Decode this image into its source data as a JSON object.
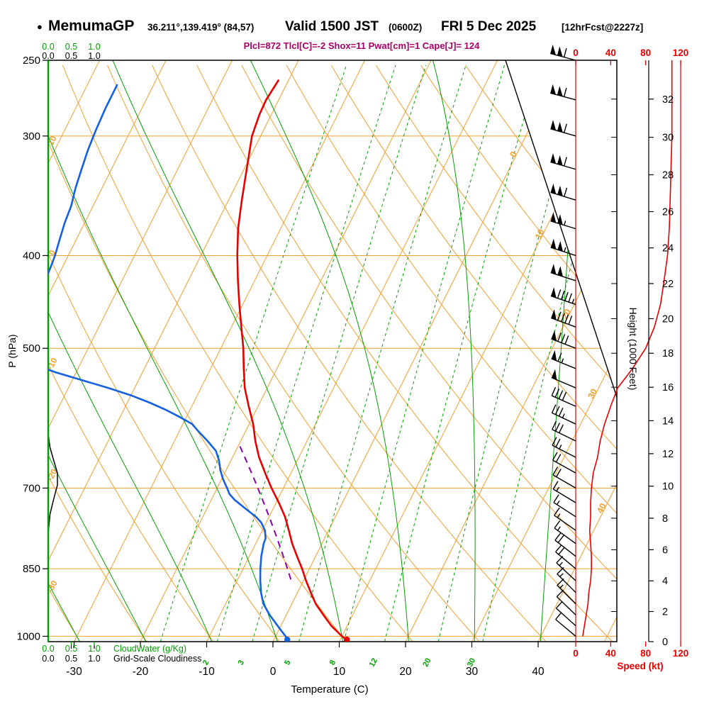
{
  "header": {
    "bullet": "●",
    "station": "MemumaGP",
    "coords": "36.211°,139.419° (84,57)",
    "valid": "Valid 1500 JST",
    "valid_z": "(0600Z)",
    "date": "FRI 5 Dec 2025",
    "fcst_tag": "[12hrFcst@2227z]",
    "indices": "Plcl=872 Tlcl[C]=-2 Shox=11 Pwat[cm]=1 Cape[J]= 124",
    "indices_color": "#aa0066"
  },
  "chart_data": {
    "type": "skewt",
    "colors": {
      "grid": "#f0a030",
      "green": "#00a000",
      "temp": "#e60000",
      "dew": "#1560e0",
      "parcel": "#8800aa",
      "speed": "#e60000",
      "cloudiness": "#000000",
      "axis": "#000000"
    },
    "pressure_axis": {
      "label": "P (hPa)",
      "ticks": [
        250,
        300,
        400,
        500,
        700,
        850,
        1000
      ],
      "bottom_hpa": 1013,
      "top_hpa": 250
    },
    "temperature_axis": {
      "label": "Temperature (C)",
      "ticks": [
        -30,
        -20,
        -10,
        0,
        10,
        20,
        30,
        40
      ]
    },
    "height_axis": {
      "label": "Height (1000 Feet)",
      "ticks_kft": [
        0,
        2,
        4,
        6,
        8,
        10,
        12,
        14,
        16,
        18,
        20,
        22,
        24,
        26,
        28,
        30,
        32
      ]
    },
    "speed_axis": {
      "label": "Speed (kt)",
      "ticks": [
        0,
        40,
        80,
        120
      ],
      "max": 120
    },
    "cloud_scale": {
      "tick_labels": [
        "0.0",
        "0.5",
        "1.0"
      ],
      "cloudwater_label": "CloudWater (g/Kg)",
      "cloudiness_label": "Grid-Scale Cloudiness"
    },
    "grid": {
      "isotherm_step": 10,
      "isotherm_labels": [
        0,
        10,
        20,
        30,
        40
      ],
      "dry_adiabat_labels": [
        -30,
        -20,
        -10,
        0,
        10
      ],
      "mixing_ratio_values": [
        1,
        2,
        3,
        5,
        8,
        12,
        20,
        30
      ],
      "mixing_ratio_labeled": [
        2,
        3,
        5,
        8,
        12,
        20,
        30
      ]
    },
    "sounding": {
      "surface": {
        "pressure": 1008,
        "temperature": 11,
        "dewpoint": 2
      },
      "parcel": {
        "lcl_pressure": 872,
        "lcl_temperature": -2,
        "top_pressure": 632
      },
      "temperature": [
        [
          1008,
          11
        ],
        [
          1000,
          10
        ],
        [
          975,
          7.6
        ],
        [
          950,
          5.6
        ],
        [
          925,
          3.6
        ],
        [
          900,
          2
        ],
        [
          875,
          0.4
        ],
        [
          850,
          -1.1
        ],
        [
          825,
          -2.8
        ],
        [
          800,
          -4.5
        ],
        [
          775,
          -6
        ],
        [
          750,
          -7.6
        ],
        [
          725,
          -9.6
        ],
        [
          700,
          -11.8
        ],
        [
          675,
          -13.9
        ],
        [
          650,
          -16
        ],
        [
          625,
          -17.8
        ],
        [
          600,
          -19.4
        ],
        [
          575,
          -21.4
        ],
        [
          550,
          -23.4
        ],
        [
          525,
          -25
        ],
        [
          500,
          -26.6
        ],
        [
          475,
          -28.5
        ],
        [
          450,
          -30.5
        ],
        [
          425,
          -32.5
        ],
        [
          400,
          -34.5
        ],
        [
          375,
          -36.4
        ],
        [
          350,
          -38
        ],
        [
          325,
          -39.6
        ],
        [
          300,
          -41.3
        ],
        [
          285,
          -41.8
        ],
        [
          275,
          -41.9
        ],
        [
          262,
          -41.5
        ]
      ],
      "dewpoint": [
        [
          1008,
          2
        ],
        [
          1000,
          1.5
        ],
        [
          975,
          -0.5
        ],
        [
          950,
          -2.5
        ],
        [
          925,
          -4.3
        ],
        [
          900,
          -5.5
        ],
        [
          875,
          -6.5
        ],
        [
          850,
          -7.4
        ],
        [
          825,
          -8.2
        ],
        [
          800,
          -8.8
        ],
        [
          790,
          -8.9
        ],
        [
          775,
          -9.6
        ],
        [
          760,
          -10.8
        ],
        [
          750,
          -12
        ],
        [
          740,
          -13.5
        ],
        [
          730,
          -15
        ],
        [
          720,
          -16.5
        ],
        [
          710,
          -17.7
        ],
        [
          700,
          -18.5
        ],
        [
          685,
          -19.8
        ],
        [
          670,
          -20.9
        ],
        [
          655,
          -21.8
        ],
        [
          640,
          -23
        ],
        [
          625,
          -25
        ],
        [
          610,
          -27.2
        ],
        [
          600,
          -28.6
        ],
        [
          590,
          -31
        ],
        [
          580,
          -33.6
        ],
        [
          570,
          -36.6
        ],
        [
          560,
          -40
        ],
        [
          550,
          -44
        ],
        [
          540,
          -48.5
        ],
        [
          530,
          -53
        ],
        [
          520,
          -57
        ],
        [
          510,
          -60
        ],
        [
          500,
          -62
        ],
        [
          485,
          -63
        ],
        [
          470,
          -62.8
        ],
        [
          455,
          -62.4
        ],
        [
          440,
          -62
        ],
        [
          425,
          -61.6
        ],
        [
          410,
          -61.8
        ],
        [
          400,
          -62
        ],
        [
          385,
          -62.5
        ],
        [
          370,
          -63
        ],
        [
          355,
          -63.3
        ],
        [
          340,
          -64
        ],
        [
          325,
          -64.5
        ],
        [
          310,
          -65
        ],
        [
          295,
          -65.3
        ],
        [
          280,
          -65.5
        ],
        [
          265,
          -65.5
        ]
      ]
    },
    "wind_profile": [
      [
        1000,
        8,
        310
      ],
      [
        975,
        10,
        312
      ],
      [
        950,
        12,
        314
      ],
      [
        925,
        14,
        315
      ],
      [
        900,
        15,
        315
      ],
      [
        875,
        17,
        313
      ],
      [
        850,
        18,
        310
      ],
      [
        825,
        18,
        308
      ],
      [
        800,
        17,
        306
      ],
      [
        775,
        16,
        305
      ],
      [
        750,
        17,
        303
      ],
      [
        725,
        17,
        301
      ],
      [
        700,
        18,
        300
      ],
      [
        675,
        20,
        299
      ],
      [
        650,
        25,
        297
      ],
      [
        625,
        28,
        296
      ],
      [
        600,
        33,
        295
      ],
      [
        575,
        40,
        294
      ],
      [
        550,
        48,
        293
      ],
      [
        525,
        65,
        292
      ],
      [
        500,
        80,
        291
      ],
      [
        475,
        90,
        290
      ],
      [
        450,
        97,
        289
      ],
      [
        425,
        101,
        288
      ],
      [
        400,
        105,
        288
      ],
      [
        375,
        107,
        287
      ],
      [
        350,
        108,
        287
      ],
      [
        325,
        109,
        286
      ],
      [
        300,
        110,
        286
      ],
      [
        275,
        110,
        285
      ],
      [
        250,
        110,
        285
      ]
    ],
    "cloudiness_profile": [
      [
        1013,
        0
      ],
      [
        780,
        0
      ],
      [
        745,
        0.04
      ],
      [
        715,
        0.13
      ],
      [
        695,
        0.2
      ],
      [
        675,
        0.2
      ],
      [
        655,
        0.12
      ],
      [
        635,
        0.04
      ],
      [
        615,
        0
      ],
      [
        250,
        0
      ]
    ],
    "cloudwater_profile": [
      [
        1013,
        0
      ],
      [
        250,
        0
      ]
    ]
  }
}
